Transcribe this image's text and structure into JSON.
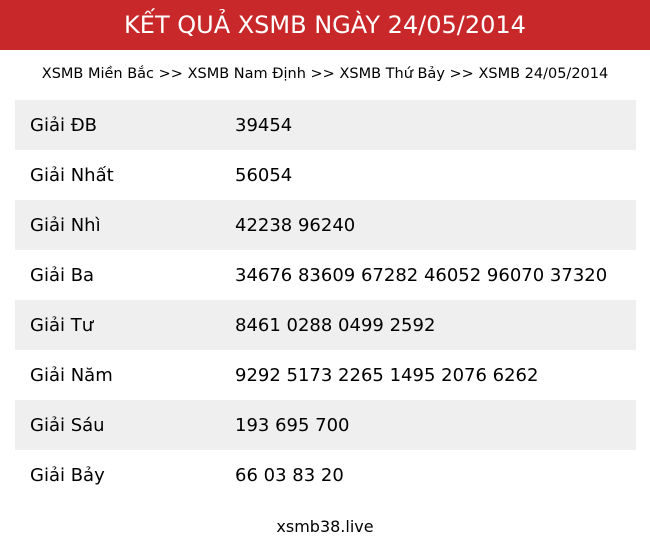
{
  "header": {
    "title": "KẾT QUẢ XSMB NGÀY 24/05/2014"
  },
  "breadcrumb": [
    {
      "label": "XSMB Miền Bắc"
    },
    {
      "label": "XSMB Nam Định"
    },
    {
      "label": "XSMB Thứ Bảy"
    },
    {
      "label": "XSMB 24/05/2014"
    }
  ],
  "separator": ">>",
  "prizes": [
    {
      "label": "Giải ĐB",
      "value": "39454"
    },
    {
      "label": "Giải Nhất",
      "value": "56054"
    },
    {
      "label": "Giải Nhì",
      "value": "42238 96240"
    },
    {
      "label": "Giải Ba",
      "value": "34676 83609 67282 46052 96070 37320"
    },
    {
      "label": "Giải Tư",
      "value": "8461 0288 0499 2592"
    },
    {
      "label": "Giải Năm",
      "value": "9292 5173 2265 1495 2076 6262"
    },
    {
      "label": "Giải Sáu",
      "value": "193 695 700"
    },
    {
      "label": "Giải Bảy",
      "value": "66 03 83 20"
    }
  ],
  "footer": {
    "site": "xsmb38.live"
  },
  "colors": {
    "header_bg": "#c9282a",
    "row_alt": "#efefef"
  }
}
